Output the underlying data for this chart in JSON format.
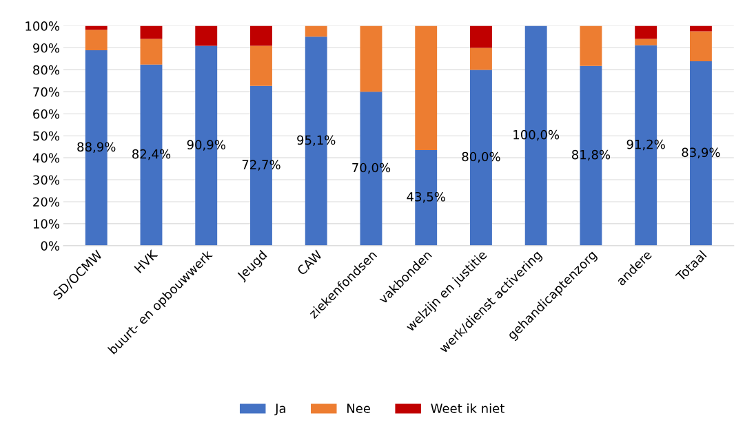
{
  "chart_data": {
    "type": "bar",
    "stacked": true,
    "categories": [
      "SD/OCMW",
      "HVK",
      "buurt- en opbouwwerk",
      "Jeugd",
      "CAW",
      "ziekenfondsen",
      "vakbonden",
      "welzijn en justitie",
      "werk/dienst activering",
      "gehandicaptenzorg",
      "andere",
      "Totaal"
    ],
    "series": [
      {
        "name": "Ja",
        "color": "#4472c4",
        "values": [
          88.9,
          82.4,
          90.9,
          72.7,
          95.1,
          70.0,
          43.5,
          80.0,
          100.0,
          81.8,
          91.2,
          83.9
        ],
        "value_labels": [
          "88,9%",
          "82,4%",
          "90,9%",
          "72,7%",
          "95,1%",
          "70,0%",
          "43,5%",
          "80,0%",
          "100,0%",
          "81,8%",
          "91,2%",
          "83,9%"
        ]
      },
      {
        "name": "Nee",
        "color": "#ed7d31",
        "values": [
          9.3,
          11.7,
          0,
          18.2,
          4.9,
          30.0,
          56.5,
          10.0,
          0,
          18.2,
          2.9,
          13.6
        ]
      },
      {
        "name": "Weet ik niet",
        "color": "#c00000",
        "values": [
          1.8,
          5.9,
          9.1,
          9.1,
          0,
          0,
          0,
          10.0,
          0,
          0,
          5.9,
          2.5
        ]
      }
    ],
    "ylim": [
      0,
      100
    ],
    "yticks": [
      {
        "value": 0,
        "label": "0%"
      },
      {
        "value": 10,
        "label": "10%"
      },
      {
        "value": 20,
        "label": "20%"
      },
      {
        "value": 30,
        "label": "30%"
      },
      {
        "value": 40,
        "label": "40%"
      },
      {
        "value": 50,
        "label": "50%"
      },
      {
        "value": 60,
        "label": "60%"
      },
      {
        "value": 70,
        "label": "70%"
      },
      {
        "value": 80,
        "label": "80%"
      },
      {
        "value": 90,
        "label": "90%"
      },
      {
        "value": 100,
        "label": "100%"
      }
    ],
    "grid": "y",
    "legend": "bottom"
  }
}
